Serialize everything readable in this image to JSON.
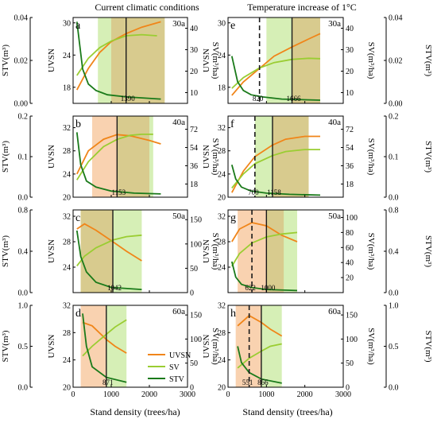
{
  "figure": {
    "column_titles": [
      "Current climatic conditions",
      "Temperature increase of 1°C"
    ],
    "x_label": "Stand density (trees/ha)",
    "x_ticks": [
      "0",
      "1000",
      "2000",
      "3000"
    ],
    "xlim": [
      0,
      3000
    ],
    "left_axis_label": "STV(m³)",
    "inner_left_label": "UVSN",
    "inner_right_label": "SV(m³/ha)",
    "legend": [
      {
        "name": "UVSN",
        "color": "#f08519"
      },
      {
        "name": "SV",
        "color": "#9acd32"
      },
      {
        "name": "STV",
        "color": "#1a7a1a"
      }
    ],
    "colors": {
      "UVSN": "#f08519",
      "SV": "#9acd32",
      "STV": "#1a7a1a",
      "shade_orange": "#f9d2b0",
      "shade_green": "#d6efb6",
      "shade_overlap": "#d8cb8e",
      "marker_line": "#1a1a1a"
    }
  },
  "chart_data": [
    {
      "type": "line",
      "panel": "a",
      "age": "30a",
      "column": "current",
      "uvsn_ylim": [
        15,
        31
      ],
      "uvsn_ticks": [
        18,
        24,
        30
      ],
      "sv_ylim": [
        5,
        45
      ],
      "sv_ticks": [
        10,
        20,
        30,
        40
      ],
      "stv_ylim": [
        0,
        0.04
      ],
      "stv_ticks": [
        "0.00",
        "0.02",
        "0.04"
      ],
      "series": [
        {
          "name": "UVSN",
          "x": [
            100,
            400,
            700,
            1000,
            1390,
            1800,
            2300
          ],
          "values": [
            17.5,
            21.5,
            24.5,
            26.5,
            28.0,
            29.2,
            30.2
          ]
        },
        {
          "name": "SV",
          "x": [
            100,
            400,
            700,
            1000,
            1390,
            1800,
            2200
          ],
          "values": [
            18,
            26,
            31,
            34,
            36.5,
            37,
            36.5
          ]
        },
        {
          "name": "STV",
          "x": [
            100,
            250,
            400,
            600,
            900,
            1400,
            2300
          ],
          "values": [
            0.038,
            0.016,
            0.009,
            0.006,
            0.004,
            0.003,
            0.002
          ]
        }
      ],
      "shade_orange": [
        1000,
        2400
      ],
      "shade_green": [
        650,
        2400
      ],
      "solid_line": 1390,
      "solid_label": "1390"
    },
    {
      "type": "line",
      "panel": "e",
      "age": "30a",
      "column": "warming",
      "uvsn_ylim": [
        15,
        31
      ],
      "uvsn_ticks": [
        18,
        24,
        30
      ],
      "sv_ylim": [
        5,
        45
      ],
      "sv_ticks": [
        10,
        20,
        30,
        40
      ],
      "stv_ylim": [
        0,
        0.04
      ],
      "stv_ticks": [
        "0.00",
        "0.02",
        "0.04"
      ],
      "series": [
        {
          "name": "UVSN",
          "x": [
            100,
            400,
            820,
            1200,
            1666,
            2100,
            2400
          ],
          "values": [
            16.5,
            19.0,
            21.5,
            23.8,
            25.5,
            27.0,
            28.0
          ]
        },
        {
          "name": "SV",
          "x": [
            100,
            400,
            820,
            1200,
            1666,
            2100,
            2400
          ],
          "values": [
            12,
            17,
            21.5,
            24,
            25.5,
            26,
            25.8
          ]
        },
        {
          "name": "STV",
          "x": [
            100,
            250,
            400,
            600,
            900,
            1400,
            2400
          ],
          "values": [
            0.022,
            0.01,
            0.006,
            0.004,
            0.003,
            0.002,
            0.0015
          ]
        }
      ],
      "shade_orange": [
        1666,
        2400
      ],
      "shade_green": [
        1000,
        2400
      ],
      "dashed_line": 820,
      "dashed_label": "820",
      "solid_line": 1666,
      "solid_label": "1666"
    },
    {
      "type": "line",
      "panel": "b",
      "age": "40a",
      "column": "current",
      "uvsn_ylim": [
        20,
        34
      ],
      "uvsn_ticks": [
        20,
        24,
        28,
        32
      ],
      "sv_ylim": [
        5,
        85
      ],
      "sv_ticks": [
        18,
        36,
        54,
        72
      ],
      "stv_ylim": [
        0,
        0.2
      ],
      "stv_ticks": [
        "0.0",
        "0.1",
        "0.2"
      ],
      "series": [
        {
          "name": "UVSN",
          "x": [
            100,
            400,
            800,
            1153,
            1500,
            2000,
            2300
          ],
          "values": [
            24.0,
            28.0,
            30.0,
            30.8,
            30.6,
            29.8,
            29.2
          ]
        },
        {
          "name": "SV",
          "x": [
            100,
            400,
            800,
            1153,
            1500,
            1800,
            2100
          ],
          "values": [
            22,
            40,
            55,
            62,
            66,
            67,
            67
          ]
        },
        {
          "name": "STV",
          "x": [
            100,
            200,
            350,
            600,
            1000,
            1600,
            2300
          ],
          "values": [
            0.16,
            0.08,
            0.04,
            0.025,
            0.015,
            0.01,
            0.008
          ]
        }
      ],
      "shade_orange": [
        500,
        2000
      ],
      "shade_green": [
        1153,
        2100
      ],
      "solid_line": 1153,
      "solid_label": "1153"
    },
    {
      "type": "line",
      "panel": "f",
      "age": "40a",
      "column": "warming",
      "uvsn_ylim": [
        20,
        34
      ],
      "uvsn_ticks": [
        20,
        24,
        28,
        32
      ],
      "sv_ylim": [
        5,
        85
      ],
      "sv_ticks": [
        18,
        36,
        54,
        72
      ],
      "stv_ylim": [
        0,
        0.2
      ],
      "stv_ticks": [
        "0.0",
        "0.1",
        "0.2"
      ],
      "series": [
        {
          "name": "UVSN",
          "x": [
            100,
            400,
            700,
            1158,
            1500,
            2000,
            2400
          ],
          "values": [
            20.8,
            24.5,
            27.0,
            29.0,
            30.0,
            30.5,
            30.5
          ]
        },
        {
          "name": "SV",
          "x": [
            100,
            400,
            700,
            1158,
            1500,
            2000,
            2400
          ],
          "values": [
            14,
            28,
            38,
            46,
            50,
            52,
            52
          ]
        },
        {
          "name": "STV",
          "x": [
            100,
            200,
            350,
            600,
            1000,
            1600,
            2400
          ],
          "values": [
            0.08,
            0.045,
            0.025,
            0.015,
            0.01,
            0.007,
            0.005
          ]
        }
      ],
      "shade_orange": [
        1158,
        2100
      ],
      "shade_green": [
        700,
        2100
      ],
      "dashed_line": 700,
      "dashed_label": "700",
      "solid_line": 1158,
      "solid_label": "1158"
    },
    {
      "type": "line",
      "panel": "c",
      "age": "50a",
      "column": "current",
      "uvsn_ylim": [
        20,
        33
      ],
      "uvsn_ticks": [
        24,
        28,
        32
      ],
      "sv_ylim": [
        0,
        170
      ],
      "sv_ticks": [
        0,
        50,
        100,
        150
      ],
      "stv_ylim": [
        0,
        0.8
      ],
      "stv_ticks": [
        "0.0",
        "0.4",
        "0.8"
      ],
      "series": [
        {
          "name": "UVSN",
          "x": [
            100,
            300,
            600,
            1042,
            1400,
            1800
          ],
          "values": [
            30.0,
            30.8,
            29.8,
            28.0,
            26.5,
            25.0
          ]
        },
        {
          "name": "SV",
          "x": [
            100,
            300,
            600,
            1042,
            1400,
            1800
          ],
          "values": [
            55,
            75,
            92,
            108,
            115,
            118
          ]
        },
        {
          "name": "STV",
          "x": [
            100,
            200,
            350,
            600,
            1000,
            1800
          ],
          "values": [
            0.6,
            0.35,
            0.2,
            0.1,
            0.05,
            0.03
          ]
        }
      ],
      "shade_orange": [
        200,
        1042
      ],
      "shade_green": [
        200,
        1800
      ],
      "solid_line": 1042,
      "solid_label": "1042"
    },
    {
      "type": "line",
      "panel": "g",
      "age": "50a",
      "column": "warming",
      "uvsn_ylim": [
        20,
        33
      ],
      "uvsn_ticks": [
        24,
        28,
        32
      ],
      "sv_ylim": [
        0,
        110
      ],
      "sv_ticks": [
        20,
        40,
        60,
        80,
        100
      ],
      "stv_ylim": [
        0,
        0.8
      ],
      "stv_ticks": [
        "0.0",
        "0.4",
        "0.8"
      ],
      "series": [
        {
          "name": "UVSN",
          "x": [
            100,
            300,
            622,
            1000,
            1400,
            1800
          ],
          "values": [
            28.0,
            30.0,
            31.0,
            30.5,
            29.0,
            28.0
          ]
        },
        {
          "name": "SV",
          "x": [
            100,
            300,
            622,
            1000,
            1400,
            1800
          ],
          "values": [
            35,
            52,
            66,
            74,
            78,
            80
          ]
        },
        {
          "name": "STV",
          "x": [
            100,
            200,
            350,
            600,
            1000,
            1800
          ],
          "values": [
            0.3,
            0.15,
            0.08,
            0.05,
            0.03,
            0.02
          ]
        }
      ],
      "shade_orange": [
        250,
        1450
      ],
      "shade_green": [
        1000,
        1800
      ],
      "dashed_line": 622,
      "dashed_label": "622",
      "solid_line": 1000,
      "solid_label": "1000"
    },
    {
      "type": "line",
      "panel": "d",
      "age": "60a",
      "column": "current",
      "uvsn_ylim": [
        20,
        32
      ],
      "uvsn_ticks": [
        20,
        24,
        28,
        32
      ],
      "sv_ylim": [
        0,
        170
      ],
      "sv_ticks": [
        0,
        50,
        100,
        150
      ],
      "stv_ylim": [
        0,
        1.0
      ],
      "stv_ticks": [
        "0.0",
        "0.5",
        "1.0"
      ],
      "series": [
        {
          "name": "UVSN",
          "x": [
            250,
            500,
            871,
            1100,
            1400
          ],
          "values": [
            29.5,
            29.0,
            27.0,
            26.0,
            25.0
          ]
        },
        {
          "name": "SV",
          "x": [
            250,
            500,
            871,
            1100,
            1400
          ],
          "values": [
            65,
            85,
            110,
            125,
            140
          ]
        },
        {
          "name": "STV",
          "x": [
            250,
            350,
            500,
            871,
            1400
          ],
          "values": [
            0.9,
            0.5,
            0.25,
            0.12,
            0.06
          ]
        }
      ],
      "shade_orange": [
        200,
        871
      ],
      "shade_green": [
        871,
        1400
      ],
      "solid_line": 871,
      "solid_label": "871"
    },
    {
      "type": "line",
      "panel": "h",
      "age": "60a",
      "column": "warming",
      "uvsn_ylim": [
        20,
        32
      ],
      "uvsn_ticks": [
        20,
        24,
        28,
        32
      ],
      "sv_ylim": [
        0,
        170
      ],
      "sv_ticks": [
        0,
        50,
        100,
        150
      ],
      "stv_ylim": [
        0,
        1.0
      ],
      "stv_ticks": [
        "0.0",
        "0.5",
        "1.0"
      ],
      "series": [
        {
          "name": "UVSN",
          "x": [
            250,
            551,
            866,
            1100,
            1400
          ],
          "values": [
            29.0,
            30.5,
            29.5,
            28.5,
            27.5
          ]
        },
        {
          "name": "SV",
          "x": [
            250,
            551,
            866,
            1100,
            1400
          ],
          "values": [
            40,
            60,
            75,
            85,
            90
          ]
        },
        {
          "name": "STV",
          "x": [
            250,
            350,
            551,
            866,
            1400
          ],
          "values": [
            0.5,
            0.3,
            0.18,
            0.1,
            0.05
          ]
        }
      ],
      "shade_orange": [
        200,
        866
      ],
      "shade_green": [
        866,
        1400
      ],
      "dashed_line": 551,
      "dashed_label": "551",
      "solid_line": 866,
      "solid_label": "866"
    }
  ]
}
